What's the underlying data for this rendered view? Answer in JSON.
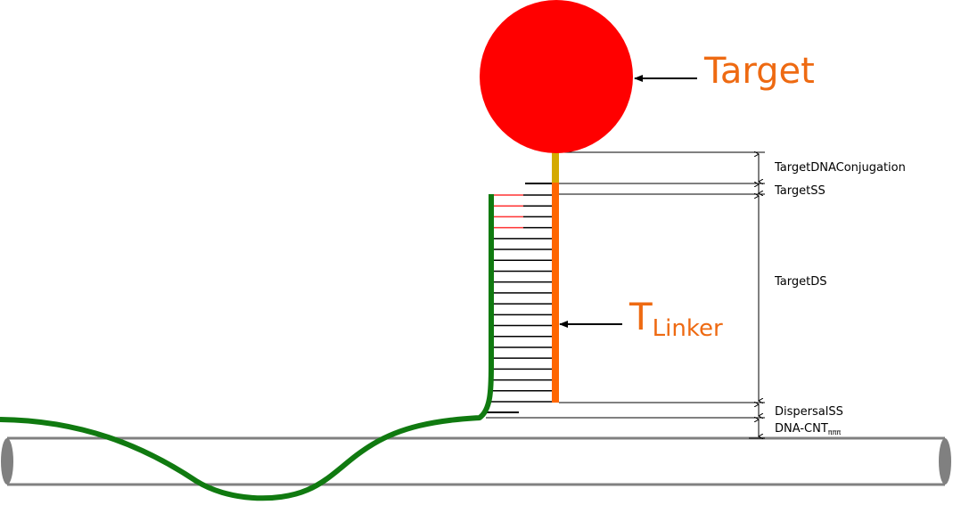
{
  "labels": {
    "target": "Target",
    "linker_main": "T",
    "linker_sub": "Linker",
    "target_dna_conjugation": "TargetDNAConjugation",
    "target_ss": "TargetSS",
    "target_ds": "TargetDS",
    "dispersal_ss": "DispersalSS",
    "dna_cnt_main": "DNA-CNT",
    "dna_cnt_sub": "πππ"
  },
  "colors": {
    "target": "#ff0000",
    "linker": "#ff6600",
    "conjugation": "#d4aa00",
    "dna_strand": "#107a10",
    "mismatch_rungs": "#ff3333",
    "rungs": "#000000",
    "nanotube": "#808080",
    "callout_text": "#ee6a12"
  },
  "structure": {
    "base_pair_rungs": 20,
    "mismatched_rungs": 4
  }
}
